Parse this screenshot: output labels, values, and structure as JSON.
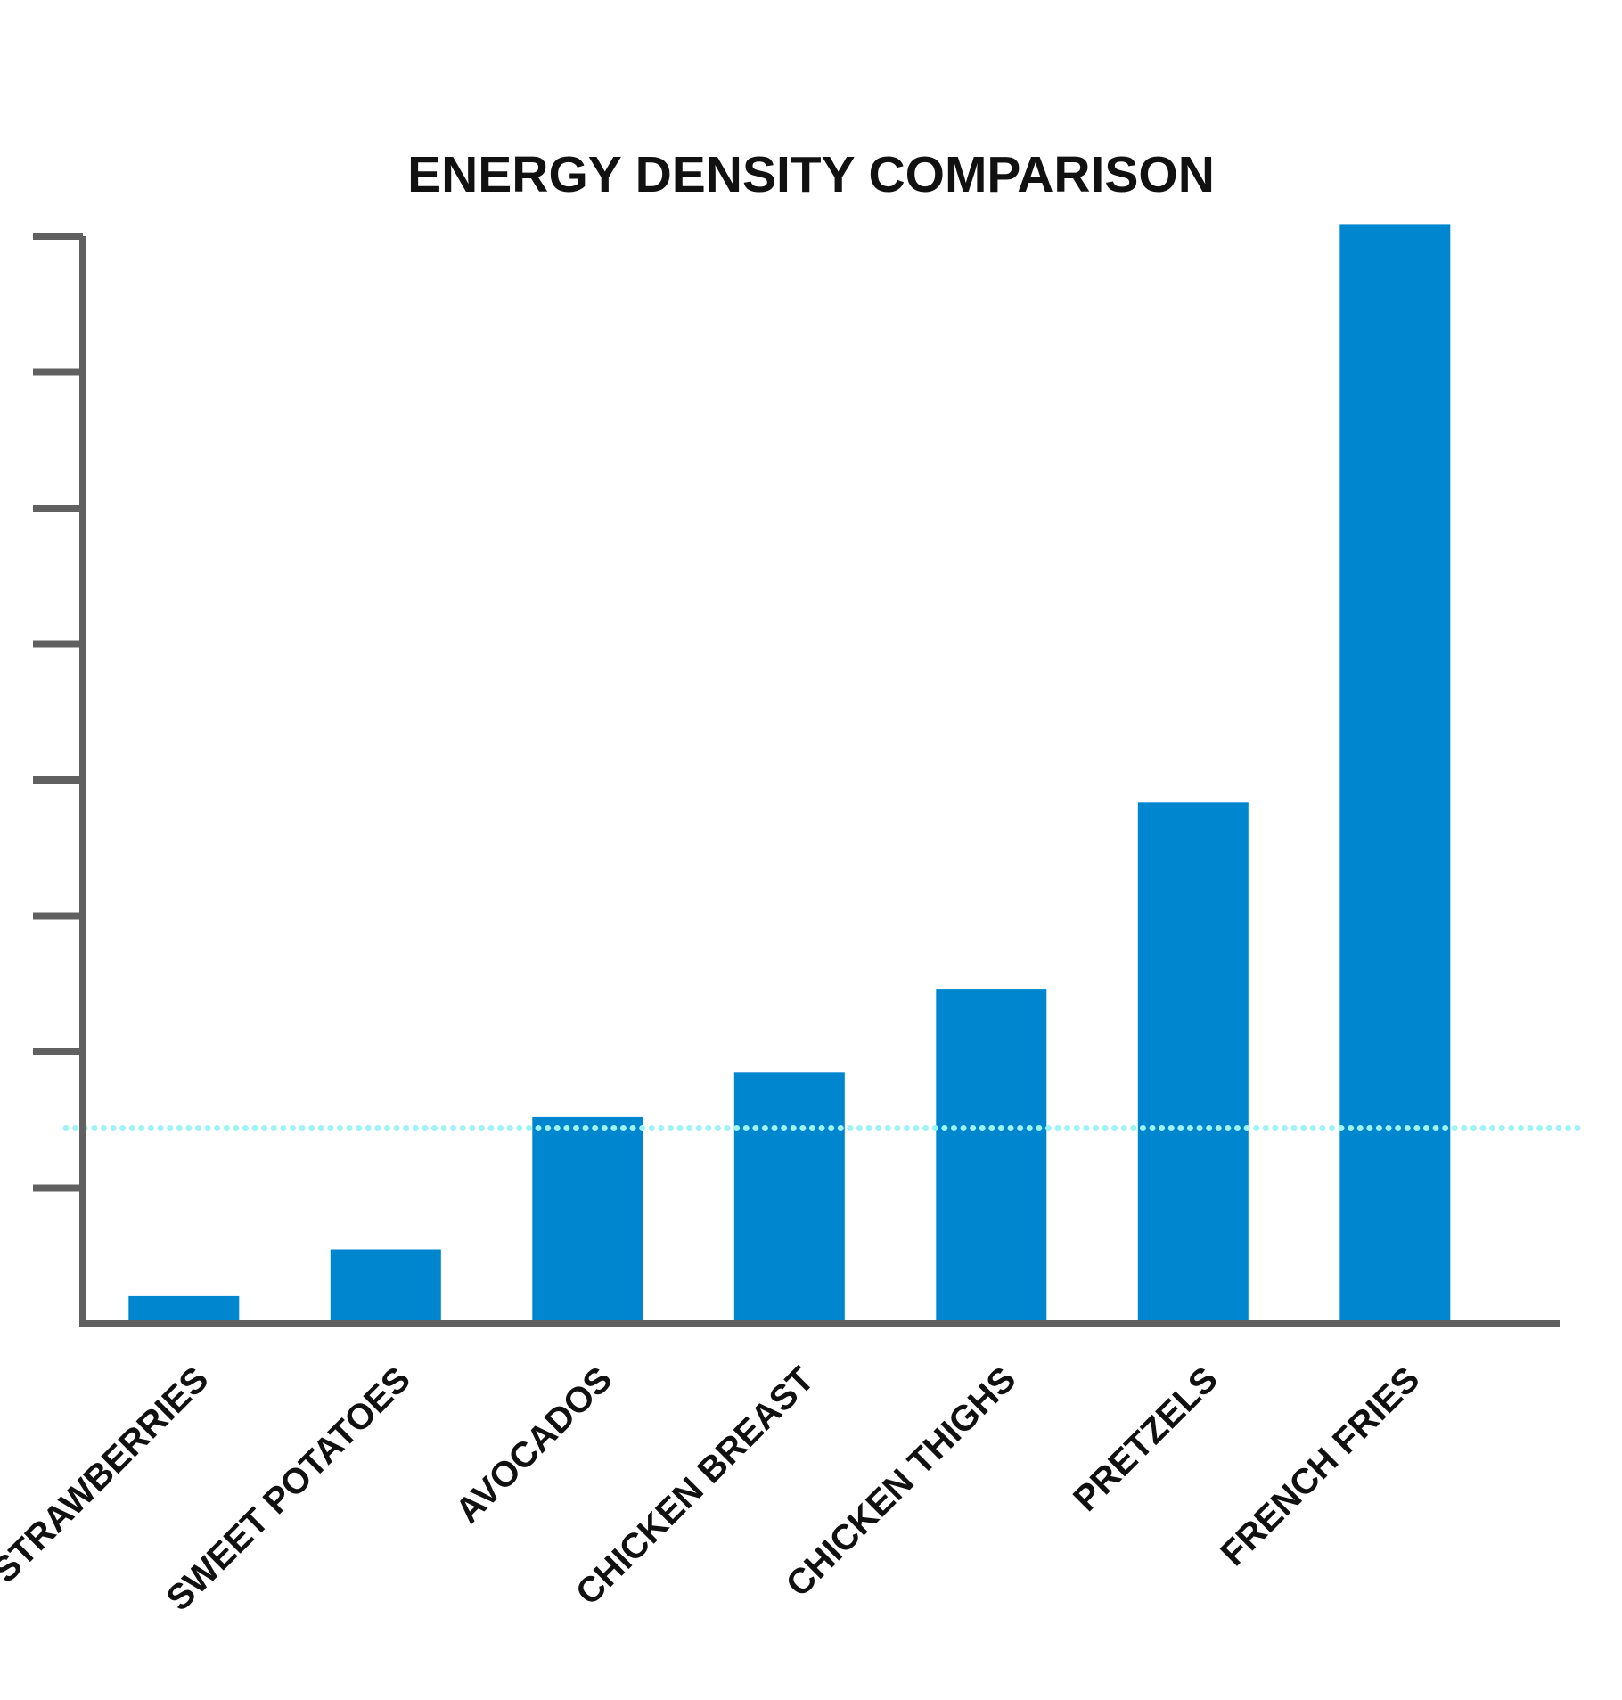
{
  "chart_data": {
    "type": "bar",
    "title": "ENERGY DENSITY COMPARISON",
    "xlabel": "",
    "ylabel": "",
    "categories": [
      "STRAWBERRIES",
      "SWEET POTATOES",
      "AVOCADOS",
      "CHICKEN BREAST",
      "CHICKEN THIGHS",
      "PRETZELS",
      "FRENCH FRIES"
    ],
    "values": [
      0.32,
      0.86,
      2.39,
      2.9,
      3.87,
      6.02,
      12.7
    ],
    "ylim": [
      0,
      12.56
    ],
    "y_tick_count": 8,
    "y_tick_labels_shown": false,
    "reference_line": {
      "value": 2.26,
      "style": "dotted"
    },
    "grid": false,
    "legend": "none",
    "colors": {
      "bar": "#0086cf",
      "axis": "#606060",
      "reference_line": "#9ff3f5",
      "text": "#111111"
    }
  }
}
